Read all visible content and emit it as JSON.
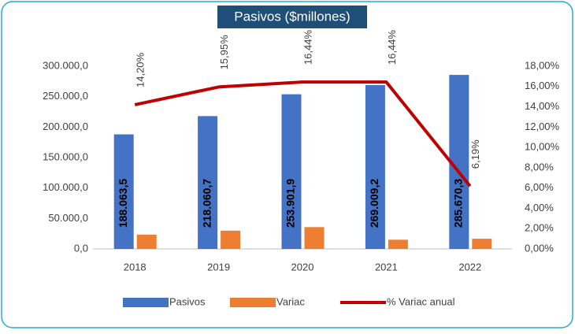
{
  "chart_data": {
    "type": "bar",
    "title": "Pasivos ($millones)",
    "categories": [
      "2018",
      "2019",
      "2020",
      "2021",
      "2022"
    ],
    "series": [
      {
        "name": "Pasivos",
        "color": "#4472c4",
        "values": [
          188063.5,
          218060.7,
          253901.9,
          269009.2,
          285670.3
        ],
        "value_labels": [
          "188.063,5",
          "218.060,7",
          "253.901,9",
          "269.009,2",
          "285.670,3"
        ]
      },
      {
        "name": "Variac",
        "color": "#ed7d31",
        "values": [
          23400,
          30000,
          35800,
          15100,
          16700
        ]
      },
      {
        "name": "% Variac anual",
        "color": "#c00000",
        "type": "line",
        "axis": "y2",
        "values": [
          14.2,
          15.95,
          16.44,
          16.44,
          6.19
        ],
        "value_labels": [
          "14,20%",
          "15,95%",
          "16,44%",
          "16,44%",
          "6,19%"
        ]
      }
    ],
    "ylim": [
      0,
      300000
    ],
    "yticks": [
      {
        "value": 0,
        "label": "0,0"
      },
      {
        "value": 50000,
        "label": "50.000,0"
      },
      {
        "value": 100000,
        "label": "100.000,0"
      },
      {
        "value": 150000,
        "label": "150.000,0"
      },
      {
        "value": 200000,
        "label": "200.000,0"
      },
      {
        "value": 250000,
        "label": "250.000,0"
      },
      {
        "value": 300000,
        "label": "300.000,0"
      }
    ],
    "y2lim": [
      0,
      18
    ],
    "y2ticks": [
      {
        "value": 0,
        "label": "0,00%"
      },
      {
        "value": 2,
        "label": "2,00%"
      },
      {
        "value": 4,
        "label": "4,00%"
      },
      {
        "value": 6,
        "label": "6,00%"
      },
      {
        "value": 8,
        "label": "8,00%"
      },
      {
        "value": 10,
        "label": "10,00%"
      },
      {
        "value": 12,
        "label": "12,00%"
      },
      {
        "value": 14,
        "label": "14,00%"
      },
      {
        "value": 16,
        "label": "16,00%"
      },
      {
        "value": 18,
        "label": "18,00%"
      }
    ],
    "legend": "bottom",
    "grid": false
  }
}
